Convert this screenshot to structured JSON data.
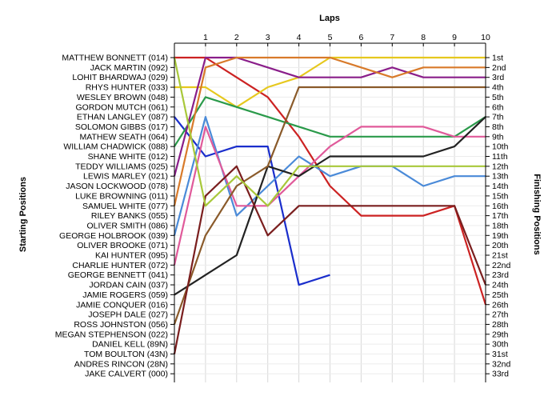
{
  "chart_data": {
    "type": "line",
    "title": "",
    "xlabel": "Laps",
    "ylabel_left": "Starting Positions",
    "ylabel_right": "Finishing Positions",
    "laps": [
      1,
      2,
      3,
      4,
      5,
      6,
      7,
      8,
      9,
      10
    ],
    "drivers": [
      "MATTHEW BONNETT (014)",
      "JACK MARTIN (092)",
      "LOHIT BHARDWAJ (029)",
      "RHYS HUNTER (033)",
      "WESLEY BROWN (048)",
      "GORDON MUTCH (061)",
      "ETHAN LANGLEY (087)",
      "SOLOMON GIBBS (017)",
      "MATHEW SEATH (064)",
      "WILLIAM CHADWICK (088)",
      "SHANE WHITE (012)",
      "TEDDY WILLIAMS (025)",
      "LEWIS MARLEY (021)",
      "JASON LOCKWOOD (078)",
      "LUKE BROWNING (011)",
      "SAMUEL WHITE (077)",
      "RILEY BANKS (055)",
      "OLIVER SMITH (086)",
      "GEORGE HOLBROOK (039)",
      "OLIVER BROOKE (071)",
      "KAI HUNTER (095)",
      "CHARLIE HUNTER (072)",
      "GEORGE BENNETT (041)",
      "JORDAN CAIN (037)",
      "JAMIE ROGERS (059)",
      "JAMIE CONQUER (016)",
      "JOSEPH DALE (027)",
      "ROSS JOHNSTON (056)",
      "MEGAN STEPHENSON (022)",
      "DANIEL KELL (89N)",
      "TOM BOULTON (43N)",
      "ANDRES RINCON (28N)",
      "JAKE CALVERT (000)"
    ],
    "finishing_labels": [
      "1st",
      "2nd",
      "3rd",
      "4th",
      "5th",
      "6th",
      "7th",
      "8th",
      "9th",
      "10th",
      "11th",
      "12th",
      "13th",
      "14th",
      "15th",
      "16th",
      "17th",
      "18th",
      "19th",
      "20th",
      "21st",
      "22nd",
      "23rd",
      "24th",
      "25th",
      "26th",
      "27th",
      "28th",
      "29th",
      "30th",
      "31st",
      "32nd",
      "33rd"
    ],
    "series": [
      {
        "color": "#cc2222",
        "positions": [
          1,
          3,
          5,
          9,
          14,
          17,
          17,
          17,
          16,
          26
        ]
      },
      {
        "color": "#e6c81e",
        "positions": [
          4,
          6,
          4,
          3,
          1,
          1,
          1,
          1,
          1,
          1
        ]
      },
      {
        "color": "#1a2ecc",
        "positions": [
          11,
          10,
          10,
          24,
          23,
          null,
          null,
          null,
          null,
          null
        ]
      },
      {
        "color": "#2a9a4a",
        "positions": [
          5,
          6,
          7,
          8,
          9,
          9,
          9,
          9,
          9,
          7
        ]
      },
      {
        "color": "#8a1e8a",
        "positions": [
          1,
          1,
          2,
          3,
          3,
          3,
          2,
          3,
          3,
          3
        ]
      },
      {
        "color": "#d87a2a",
        "positions": [
          2,
          1,
          1,
          1,
          1,
          2,
          3,
          2,
          2,
          2
        ]
      },
      {
        "color": "#4a8ad8",
        "positions": [
          7,
          17,
          14,
          11,
          13,
          12,
          12,
          14,
          13,
          13
        ]
      },
      {
        "color": "#e05a9a",
        "positions": [
          8,
          16,
          16,
          13,
          10,
          8,
          8,
          8,
          9,
          9
        ]
      },
      {
        "color": "#222222",
        "positions": [
          23,
          21,
          12,
          13,
          11,
          11,
          11,
          11,
          10,
          7
        ]
      },
      {
        "color": "#8a5a2a",
        "positions": [
          19,
          14,
          12,
          4,
          4,
          4,
          4,
          4,
          4,
          4
        ]
      },
      {
        "color": "#7a1e1e",
        "positions": [
          15,
          12,
          19,
          16,
          16,
          16,
          16,
          16,
          16,
          24
        ]
      },
      {
        "color": "#a8c83a",
        "positions": [
          16,
          13,
          16,
          12,
          12,
          12,
          12,
          12,
          12,
          12
        ]
      }
    ]
  }
}
